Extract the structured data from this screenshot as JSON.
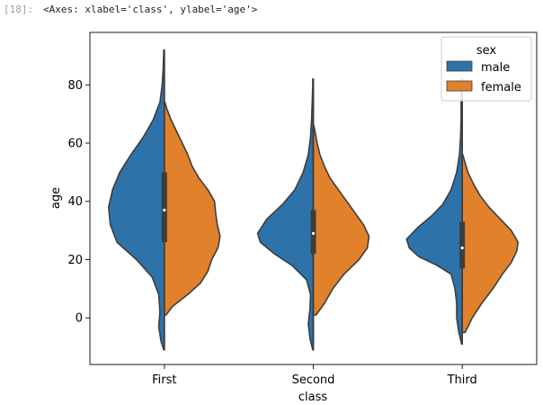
{
  "cell": {
    "prompt": "[18]:",
    "output_text": "<Axes: xlabel='class', ylabel='age'>"
  },
  "chart_data": {
    "type": "violin",
    "split": true,
    "xlabel": "class",
    "ylabel": "age",
    "categories": [
      "First",
      "Second",
      "Third"
    ],
    "ylim": [
      -16,
      98
    ],
    "yticks": [
      0,
      20,
      40,
      60,
      80
    ],
    "legend": {
      "title": "sex",
      "placement": "upper-right",
      "entries": [
        "male",
        "female"
      ]
    },
    "series": [
      {
        "name": "male",
        "color": "#2e72aa",
        "side": "left",
        "profiles": [
          [
            [
              -11,
              0.01
            ],
            [
              -8,
              0.06
            ],
            [
              -3,
              0.1
            ],
            [
              2,
              0.08
            ],
            [
              8,
              0.1
            ],
            [
              14,
              0.22
            ],
            [
              20,
              0.5
            ],
            [
              26,
              0.85
            ],
            [
              32,
              0.97
            ],
            [
              38,
              1.0
            ],
            [
              44,
              0.93
            ],
            [
              50,
              0.8
            ],
            [
              56,
              0.6
            ],
            [
              62,
              0.38
            ],
            [
              68,
              0.2
            ],
            [
              74,
              0.08
            ],
            [
              80,
              0.04
            ],
            [
              86,
              0.02
            ],
            [
              92,
              0.01
            ]
          ],
          [
            [
              -11,
              0.01
            ],
            [
              -7,
              0.06
            ],
            [
              -2,
              0.09
            ],
            [
              3,
              0.06
            ],
            [
              8,
              0.05
            ],
            [
              13,
              0.12
            ],
            [
              18,
              0.38
            ],
            [
              22,
              0.7
            ],
            [
              26,
              0.95
            ],
            [
              29,
              1.0
            ],
            [
              34,
              0.83
            ],
            [
              39,
              0.55
            ],
            [
              44,
              0.33
            ],
            [
              50,
              0.18
            ],
            [
              56,
              0.09
            ],
            [
              62,
              0.05
            ],
            [
              68,
              0.03
            ],
            [
              74,
              0.02
            ],
            [
              80,
              0.01
            ],
            [
              82,
              0.01
            ]
          ],
          [
            [
              -9,
              0.01
            ],
            [
              -5,
              0.06
            ],
            [
              0,
              0.1
            ],
            [
              5,
              0.1
            ],
            [
              10,
              0.13
            ],
            [
              15,
              0.2
            ],
            [
              18,
              0.45
            ],
            [
              21,
              0.78
            ],
            [
              24,
              0.95
            ],
            [
              27,
              1.0
            ],
            [
              31,
              0.8
            ],
            [
              35,
              0.55
            ],
            [
              39,
              0.35
            ],
            [
              44,
              0.2
            ],
            [
              50,
              0.1
            ],
            [
              56,
              0.05
            ],
            [
              62,
              0.03
            ],
            [
              68,
              0.02
            ],
            [
              74,
              0.02
            ],
            [
              80,
              0.01
            ],
            [
              82,
              0.01
            ]
          ]
        ]
      },
      {
        "name": "female",
        "color": "#e1812b",
        "side": "right",
        "profiles": [
          [
            [
              1,
              0.03
            ],
            [
              4,
              0.15
            ],
            [
              8,
              0.42
            ],
            [
              12,
              0.65
            ],
            [
              16,
              0.78
            ],
            [
              20,
              0.85
            ],
            [
              24,
              0.96
            ],
            [
              28,
              1.0
            ],
            [
              32,
              0.95
            ],
            [
              36,
              0.92
            ],
            [
              40,
              0.9
            ],
            [
              44,
              0.78
            ],
            [
              48,
              0.62
            ],
            [
              52,
              0.5
            ],
            [
              56,
              0.42
            ],
            [
              60,
              0.32
            ],
            [
              64,
              0.22
            ],
            [
              68,
              0.12
            ],
            [
              72,
              0.04
            ],
            [
              74,
              0.01
            ]
          ],
          [
            [
              1,
              0.05
            ],
            [
              5,
              0.2
            ],
            [
              10,
              0.35
            ],
            [
              15,
              0.55
            ],
            [
              20,
              0.82
            ],
            [
              24,
              0.97
            ],
            [
              28,
              1.0
            ],
            [
              32,
              0.9
            ],
            [
              36,
              0.75
            ],
            [
              40,
              0.6
            ],
            [
              44,
              0.45
            ],
            [
              48,
              0.3
            ],
            [
              52,
              0.2
            ],
            [
              56,
              0.12
            ],
            [
              60,
              0.07
            ],
            [
              64,
              0.03
            ],
            [
              66,
              0.01
            ]
          ],
          [
            [
              -5,
              0.05
            ],
            [
              0,
              0.18
            ],
            [
              5,
              0.35
            ],
            [
              10,
              0.55
            ],
            [
              15,
              0.72
            ],
            [
              19,
              0.88
            ],
            [
              23,
              0.98
            ],
            [
              26,
              1.0
            ],
            [
              30,
              0.88
            ],
            [
              34,
              0.68
            ],
            [
              38,
              0.48
            ],
            [
              42,
              0.32
            ],
            [
              46,
              0.2
            ],
            [
              50,
              0.1
            ],
            [
              54,
              0.04
            ],
            [
              56,
              0.01
            ]
          ]
        ]
      }
    ],
    "inner_box": [
      {
        "q1": 26,
        "median": 37,
        "q3": 50
      },
      {
        "q1": 22,
        "median": 29,
        "q3": 37
      },
      {
        "q1": 17,
        "median": 24,
        "q3": 33
      }
    ]
  }
}
